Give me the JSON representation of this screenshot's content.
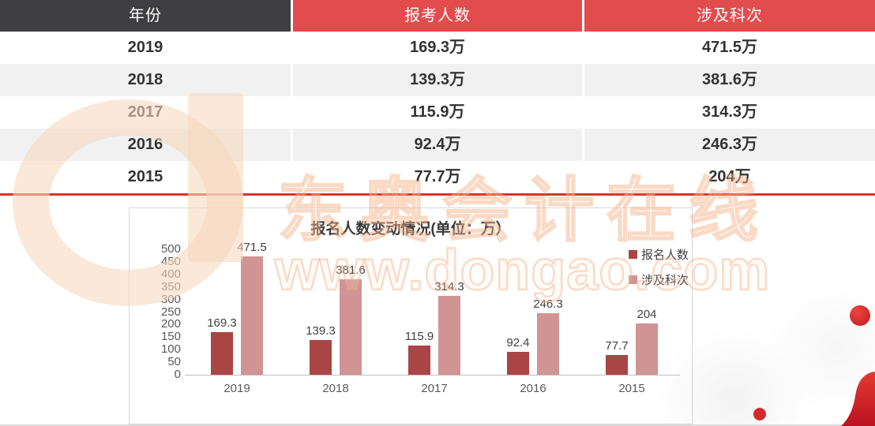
{
  "table": {
    "headers": [
      {
        "label": "年份",
        "bg": "#3F3F41"
      },
      {
        "label": "报考人数",
        "bg": "#E24C4D"
      },
      {
        "label": "涉及科次",
        "bg": "#E24C4D"
      }
    ],
    "rows": [
      {
        "year": "2019",
        "applicants": "169.3万",
        "subjects": "471.5万"
      },
      {
        "year": "2018",
        "applicants": "139.3万",
        "subjects": "381.6万"
      },
      {
        "year": "2017",
        "applicants": "115.9万",
        "subjects": "314.3万"
      },
      {
        "year": "2016",
        "applicants": "92.4万",
        "subjects": "246.3万"
      },
      {
        "year": "2015",
        "applicants": "77.7万",
        "subjects": "204万"
      }
    ],
    "row_alt_bg": "#F1F1F1"
  },
  "chart_data": {
    "type": "bar",
    "title": "报名人数变动情况(单位：万）",
    "categories": [
      "2019",
      "2018",
      "2017",
      "2016",
      "2015"
    ],
    "series": [
      {
        "name": "报名人数",
        "color": "#A94545",
        "values": [
          169.3,
          139.3,
          115.9,
          92.4,
          77.7
        ]
      },
      {
        "name": "涉及科次",
        "color": "#D09495",
        "values": [
          471.5,
          381.6,
          314.3,
          246.3,
          204
        ]
      }
    ],
    "ylabel": "",
    "xlabel": "",
    "ylim": [
      0,
      500
    ],
    "yticks": [
      0,
      50,
      100,
      150,
      200,
      250,
      300,
      350,
      400,
      450,
      500
    ],
    "grid": false,
    "legend_position": "right-inside"
  },
  "watermark": {
    "logo": "dongao-d-logo",
    "brand_text": "东奥会计在线",
    "url_text": "www.dongao.com"
  },
  "colors": {
    "header_dark": "#3F3F41",
    "header_red": "#E24C4D",
    "divider_red": "#D5342E",
    "accent_red": "#C3121F"
  }
}
